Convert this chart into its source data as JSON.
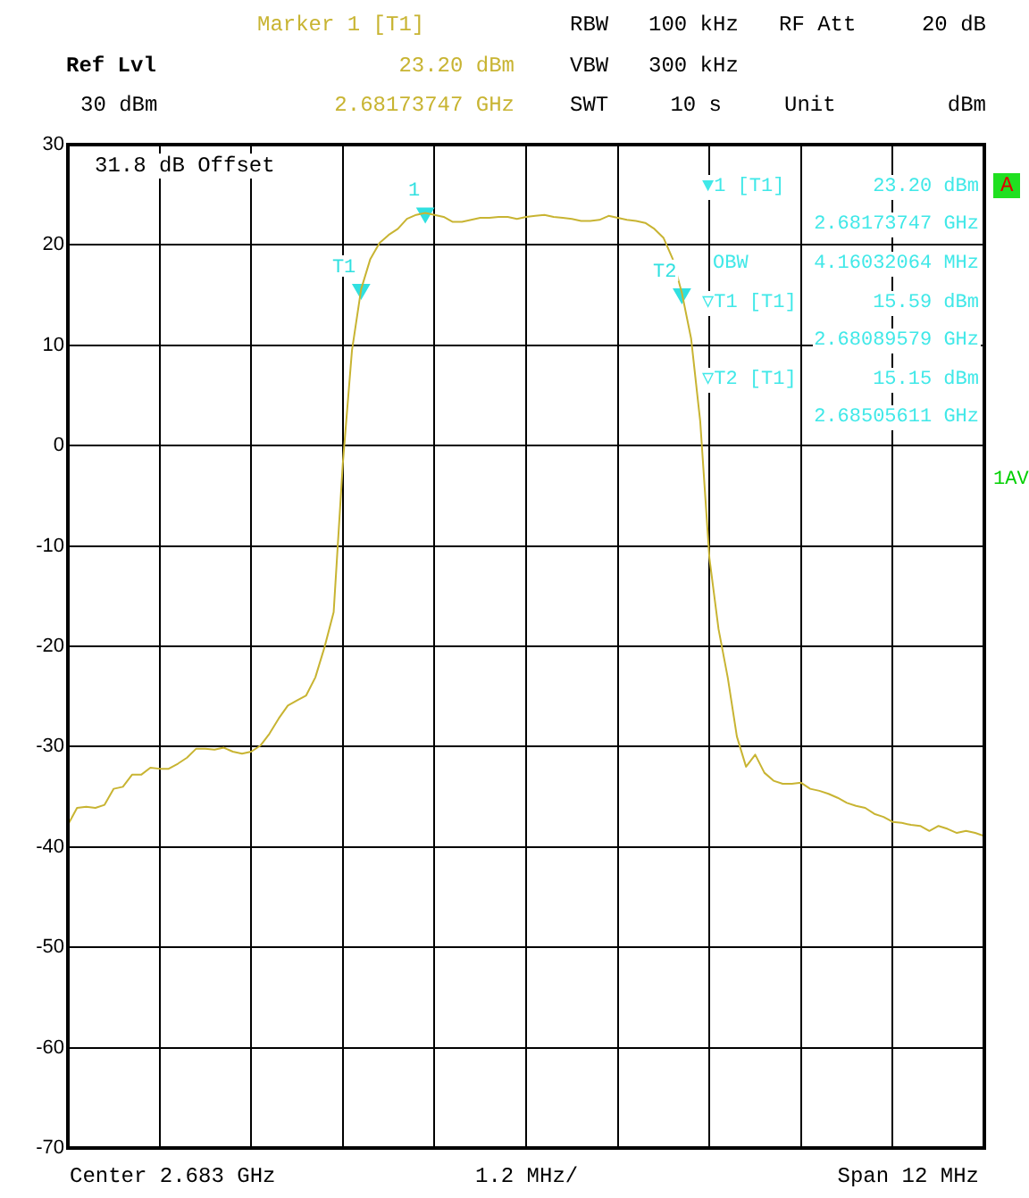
{
  "chart_data": {
    "type": "line",
    "categories": [
      null,
      null,
      null,
      null,
      null,
      null,
      null,
      null,
      null,
      null,
      null,
      null,
      null,
      null,
      null,
      null,
      null,
      null,
      null,
      null,
      null,
      null,
      null,
      null,
      null,
      null,
      null,
      null,
      null,
      null,
      null,
      null,
      null,
      null,
      null,
      null,
      null,
      null,
      null,
      null,
      null,
      null,
      null,
      null,
      null,
      null,
      null,
      null,
      null,
      null,
      null,
      null,
      null,
      null,
      null,
      null,
      null,
      null,
      null,
      null,
      null,
      null,
      null,
      null,
      null,
      null,
      null,
      null,
      null,
      null,
      null,
      null,
      null,
      null,
      null,
      null,
      null,
      null,
      null,
      null,
      null,
      null,
      null,
      null,
      null,
      null,
      null,
      null,
      null,
      null,
      null,
      null,
      null,
      null,
      null,
      null,
      null,
      null,
      null,
      null,
      null
    ],
    "series": [
      {
        "color": "#c8b432",
        "values": [
          -37.8,
          -36.1,
          -36.0,
          -36.1,
          -35.8,
          -34.2,
          -34.0,
          -32.8,
          -32.8,
          -32.1,
          -32.2,
          -32.2,
          -31.7,
          -31.1,
          -30.2,
          -30.2,
          -30.3,
          -30.1,
          -30.5,
          -30.7,
          -30.5,
          -29.9,
          -28.7,
          -27.2,
          -25.9,
          -25.4,
          -24.9,
          -23.1,
          -20.1,
          -16.6,
          -1.8,
          9.5,
          15.6,
          18.6,
          20.2,
          21.0,
          21.6,
          22.6,
          23.0,
          23.2,
          23.0,
          22.8,
          22.3,
          22.3,
          22.5,
          22.7,
          22.7,
          22.8,
          22.8,
          22.6,
          22.8,
          22.9,
          23.0,
          22.8,
          22.7,
          22.6,
          22.4,
          22.4,
          22.5,
          22.9,
          22.7,
          22.5,
          22.4,
          22.2,
          21.6,
          20.7,
          18.6,
          15.2,
          10.7,
          2.4,
          -11.2,
          -18.3,
          -23.1,
          -29.0,
          -32.0,
          -30.8,
          -32.6,
          -33.4,
          -33.7,
          -33.7,
          -33.6,
          -34.2,
          -34.4,
          -34.7,
          -35.1,
          -35.6,
          -35.9,
          -36.1,
          -36.7,
          -37.0,
          -37.5,
          -37.6,
          -37.8,
          -37.9,
          -38.4,
          -37.9,
          -38.2,
          -38.6,
          -38.4,
          -38.6,
          -38.9
        ]
      },
      {
        "type": "scatter",
        "marker": "triangle",
        "name": "1",
        "color": "#30e0e0",
        "values": [
          null,
          null,
          null,
          null,
          null,
          null,
          null,
          null,
          null,
          null,
          null,
          null,
          null,
          null,
          null,
          null,
          null,
          null,
          null,
          null,
          null,
          null,
          null,
          null,
          null,
          null,
          null,
          null,
          null,
          null,
          null,
          null,
          null,
          null,
          null,
          null,
          null,
          null,
          null,
          23.2,
          null,
          null,
          null,
          null,
          null,
          null,
          null,
          null,
          null,
          null,
          null,
          null,
          null,
          null,
          null,
          null,
          null,
          null,
          null,
          null,
          null,
          null,
          null,
          null,
          null,
          null,
          null,
          null,
          null,
          null,
          null,
          null,
          null,
          null,
          null,
          null,
          null,
          null,
          null,
          null,
          null,
          null,
          null,
          null,
          null,
          null,
          null,
          null,
          null,
          null,
          null,
          null,
          null,
          null,
          null,
          null,
          null,
          null,
          null,
          null,
          null
        ]
      },
      {
        "type": "scatter",
        "marker": "triangle",
        "name": "T1",
        "color": "#30e0e0",
        "values": [
          null,
          null,
          null,
          null,
          null,
          null,
          null,
          null,
          null,
          null,
          null,
          null,
          null,
          null,
          null,
          null,
          null,
          null,
          null,
          null,
          null,
          null,
          null,
          null,
          null,
          null,
          null,
          null,
          null,
          null,
          null,
          null,
          15.59,
          null,
          null,
          null,
          null,
          null,
          null,
          null,
          null,
          null,
          null,
          null,
          null,
          null,
          null,
          null,
          null,
          null,
          null,
          null,
          null,
          null,
          null,
          null,
          null,
          null,
          null,
          null,
          null,
          null,
          null,
          null,
          null,
          null,
          null,
          null,
          null,
          null,
          null,
          null,
          null,
          null,
          null,
          null,
          null,
          null,
          null,
          null,
          null,
          null,
          null,
          null,
          null,
          null,
          null,
          null,
          null,
          null,
          null,
          null,
          null,
          null,
          null,
          null,
          null,
          null,
          null,
          null,
          null
        ]
      },
      {
        "type": "scatter",
        "marker": "triangle",
        "name": "T2",
        "color": "#30e0e0",
        "values": [
          null,
          null,
          null,
          null,
          null,
          null,
          null,
          null,
          null,
          null,
          null,
          null,
          null,
          null,
          null,
          null,
          null,
          null,
          null,
          null,
          null,
          null,
          null,
          null,
          null,
          null,
          null,
          null,
          null,
          null,
          null,
          null,
          null,
          null,
          null,
          null,
          null,
          null,
          null,
          null,
          null,
          null,
          null,
          null,
          null,
          null,
          null,
          null,
          null,
          null,
          null,
          null,
          null,
          null,
          null,
          null,
          null,
          null,
          null,
          null,
          null,
          null,
          null,
          null,
          null,
          null,
          null,
          15.15,
          null,
          null,
          null,
          null,
          null,
          null,
          null,
          null,
          null,
          null,
          null,
          null,
          null,
          null,
          null,
          null,
          null,
          null,
          null,
          null,
          null,
          null,
          null,
          null,
          null,
          null,
          null,
          null,
          null,
          null,
          null,
          null,
          null
        ]
      }
    ],
    "ylim": [
      -70,
      30
    ],
    "yticks": [
      -70,
      -60,
      -50,
      -40,
      -30,
      -20,
      -10,
      0,
      10,
      20,
      30
    ],
    "grid": true,
    "legend": false,
    "line_style": "solid",
    "tick_labels": "y",
    "annotations": [
      "Marker 1 [T1]",
      "Ref Lvl",
      "23.20 dBm",
      "RBW",
      "100 kHz",
      "RF Att",
      "20 dB",
      "VBW",
      "300 kHz",
      "30 dBm",
      "2.68173747 GHz",
      "SWT",
      "10 s",
      "Unit",
      "dBm",
      "31.8 dB Offset",
      "▼1 [T1]",
      "23.20 dBm",
      "2.68173747 GHz",
      "OBW",
      "4.16032064 MHz",
      "▽T1 [T1]",
      "15.59 dBm",
      "2.68089579 GHz",
      "▽T2 [T1]",
      "15.15 dBm",
      "2.68505611 GHz",
      "A",
      "1AV",
      "Center 2.683 GHz",
      "1.2 MHz/",
      "Span 12 MHz"
    ]
  }
}
